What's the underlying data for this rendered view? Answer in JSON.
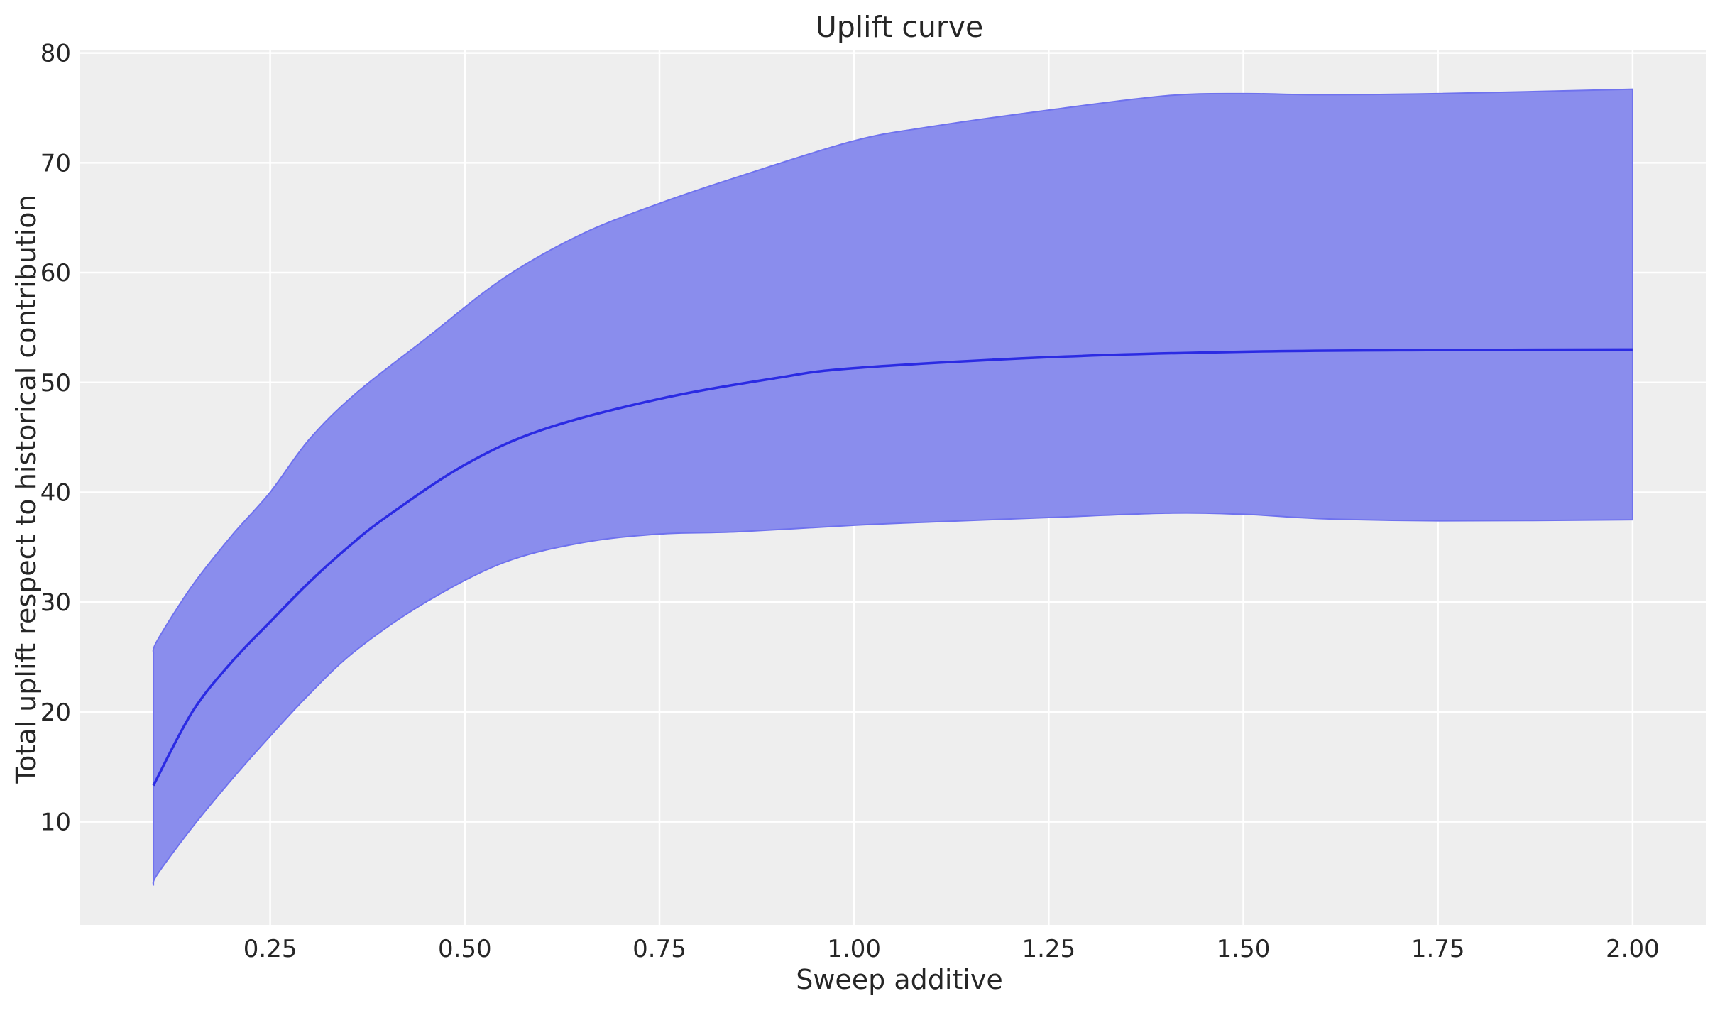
{
  "chart_data": {
    "type": "line",
    "title": "Uplift curve",
    "xlabel": "Sweep additive",
    "ylabel": "Total uplift respect to historical contribution",
    "xlim": [
      0.006,
      2.094
    ],
    "ylim": [
      0.6,
      80.3
    ],
    "xticks": [
      0.25,
      0.5,
      0.75,
      1.0,
      1.25,
      1.5,
      1.75,
      2.0
    ],
    "xtick_labels": [
      "0.25",
      "0.50",
      "0.75",
      "1.00",
      "1.25",
      "1.50",
      "1.75",
      "2.00"
    ],
    "yticks": [
      10,
      20,
      30,
      40,
      50,
      60,
      70,
      80
    ],
    "ytick_labels": [
      "10",
      "20",
      "30",
      "40",
      "50",
      "60",
      "70",
      "80"
    ],
    "grid": true,
    "colors": {
      "background": "#eeeeee",
      "grid": "#ffffff",
      "line": "#2b2be3",
      "band": "#8a8ded"
    },
    "series": [
      {
        "kind": "mean-line",
        "x": [
          0.1,
          0.15,
          0.2,
          0.25,
          0.3,
          0.35,
          0.4,
          0.5,
          0.6,
          0.75,
          0.9,
          1.0,
          1.25,
          1.5,
          1.75,
          2.0
        ],
        "y": [
          13.3,
          20.0,
          24.5,
          28.2,
          31.8,
          35.0,
          37.8,
          42.5,
          45.7,
          48.5,
          50.4,
          51.3,
          52.3,
          52.8,
          52.95,
          53.0
        ]
      },
      {
        "kind": "band",
        "x": [
          0.1,
          0.105,
          0.15,
          0.2,
          0.25,
          0.3,
          0.36,
          0.45,
          0.55,
          0.65,
          0.75,
          0.85,
          1.0,
          1.1,
          1.25,
          1.4,
          1.5,
          1.6,
          1.75,
          2.0
        ],
        "upper": [
          25.3,
          26.5,
          31.5,
          36.0,
          40.0,
          44.8,
          49.0,
          54.0,
          59.5,
          63.5,
          66.3,
          68.7,
          72.0,
          73.3,
          74.8,
          76.1,
          76.3,
          76.2,
          76.3,
          76.7
        ],
        "lower": [
          4.2,
          5.2,
          9.5,
          13.8,
          17.8,
          21.6,
          25.6,
          30.0,
          33.6,
          35.4,
          36.2,
          36.4,
          37.0,
          37.3,
          37.7,
          38.1,
          38.0,
          37.6,
          37.4,
          37.5
        ]
      }
    ]
  }
}
